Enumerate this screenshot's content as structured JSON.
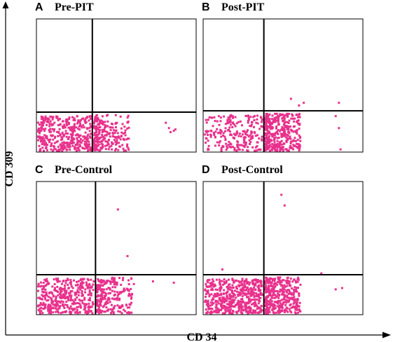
{
  "axes": {
    "y_label": "CD 309",
    "x_label": "CD 34"
  },
  "chart_data": [
    {
      "type": "scatter",
      "panel": "A",
      "title": "Pre-PIT",
      "xlabel": "CD 34",
      "ylabel": "CD 309",
      "xlim": [
        0,
        100
      ],
      "ylim": [
        0,
        100
      ],
      "gates": {
        "x": 35,
        "y": 30
      },
      "color": "#e8318c",
      "lower_left_density": "high",
      "lower_right_density": "medium",
      "sparse_points": [
        [
          81,
          22
        ],
        [
          86,
          16
        ],
        [
          87,
          17
        ],
        [
          83,
          18
        ],
        [
          84,
          15
        ]
      ]
    },
    {
      "type": "scatter",
      "panel": "B",
      "title": "Post-PIT",
      "xlabel": "CD 34",
      "ylabel": "CD 309",
      "xlim": [
        0,
        100
      ],
      "ylim": [
        0,
        100
      ],
      "gates": {
        "x": 38,
        "y": 31
      },
      "color": "#e8318c",
      "lower_left_density": "medium",
      "lower_right_density": "high",
      "sparse_points": [
        [
          85,
          37
        ],
        [
          83,
          27
        ],
        [
          85,
          18
        ],
        [
          86,
          2
        ],
        [
          63,
          37
        ],
        [
          55,
          40
        ],
        [
          60,
          35
        ]
      ]
    },
    {
      "type": "scatter",
      "panel": "C",
      "title": "Pre-Control",
      "xlabel": "CD 34",
      "ylabel": "CD 309",
      "xlim": [
        0,
        100
      ],
      "ylim": [
        0,
        100
      ],
      "gates": {
        "x": 37,
        "y": 30
      },
      "color": "#e8318c",
      "lower_left_density": "high",
      "lower_right_density": "medium",
      "sparse_points": [
        [
          51,
          79
        ],
        [
          57,
          44
        ],
        [
          73,
          25
        ],
        [
          86,
          24
        ],
        [
          61,
          23
        ]
      ]
    },
    {
      "type": "scatter",
      "panel": "D",
      "title": "Post-Control",
      "xlabel": "CD 34",
      "ylabel": "CD 309",
      "xlim": [
        0,
        100
      ],
      "ylim": [
        0,
        100
      ],
      "gates": {
        "x": 38,
        "y": 30
      },
      "color": "#e8318c",
      "lower_left_density": "very high",
      "lower_right_density": "high",
      "sparse_points": [
        [
          51,
          82
        ],
        [
          49,
          90
        ],
        [
          83,
          19
        ],
        [
          87,
          20
        ],
        [
          74,
          31
        ],
        [
          12,
          34
        ]
      ]
    }
  ]
}
